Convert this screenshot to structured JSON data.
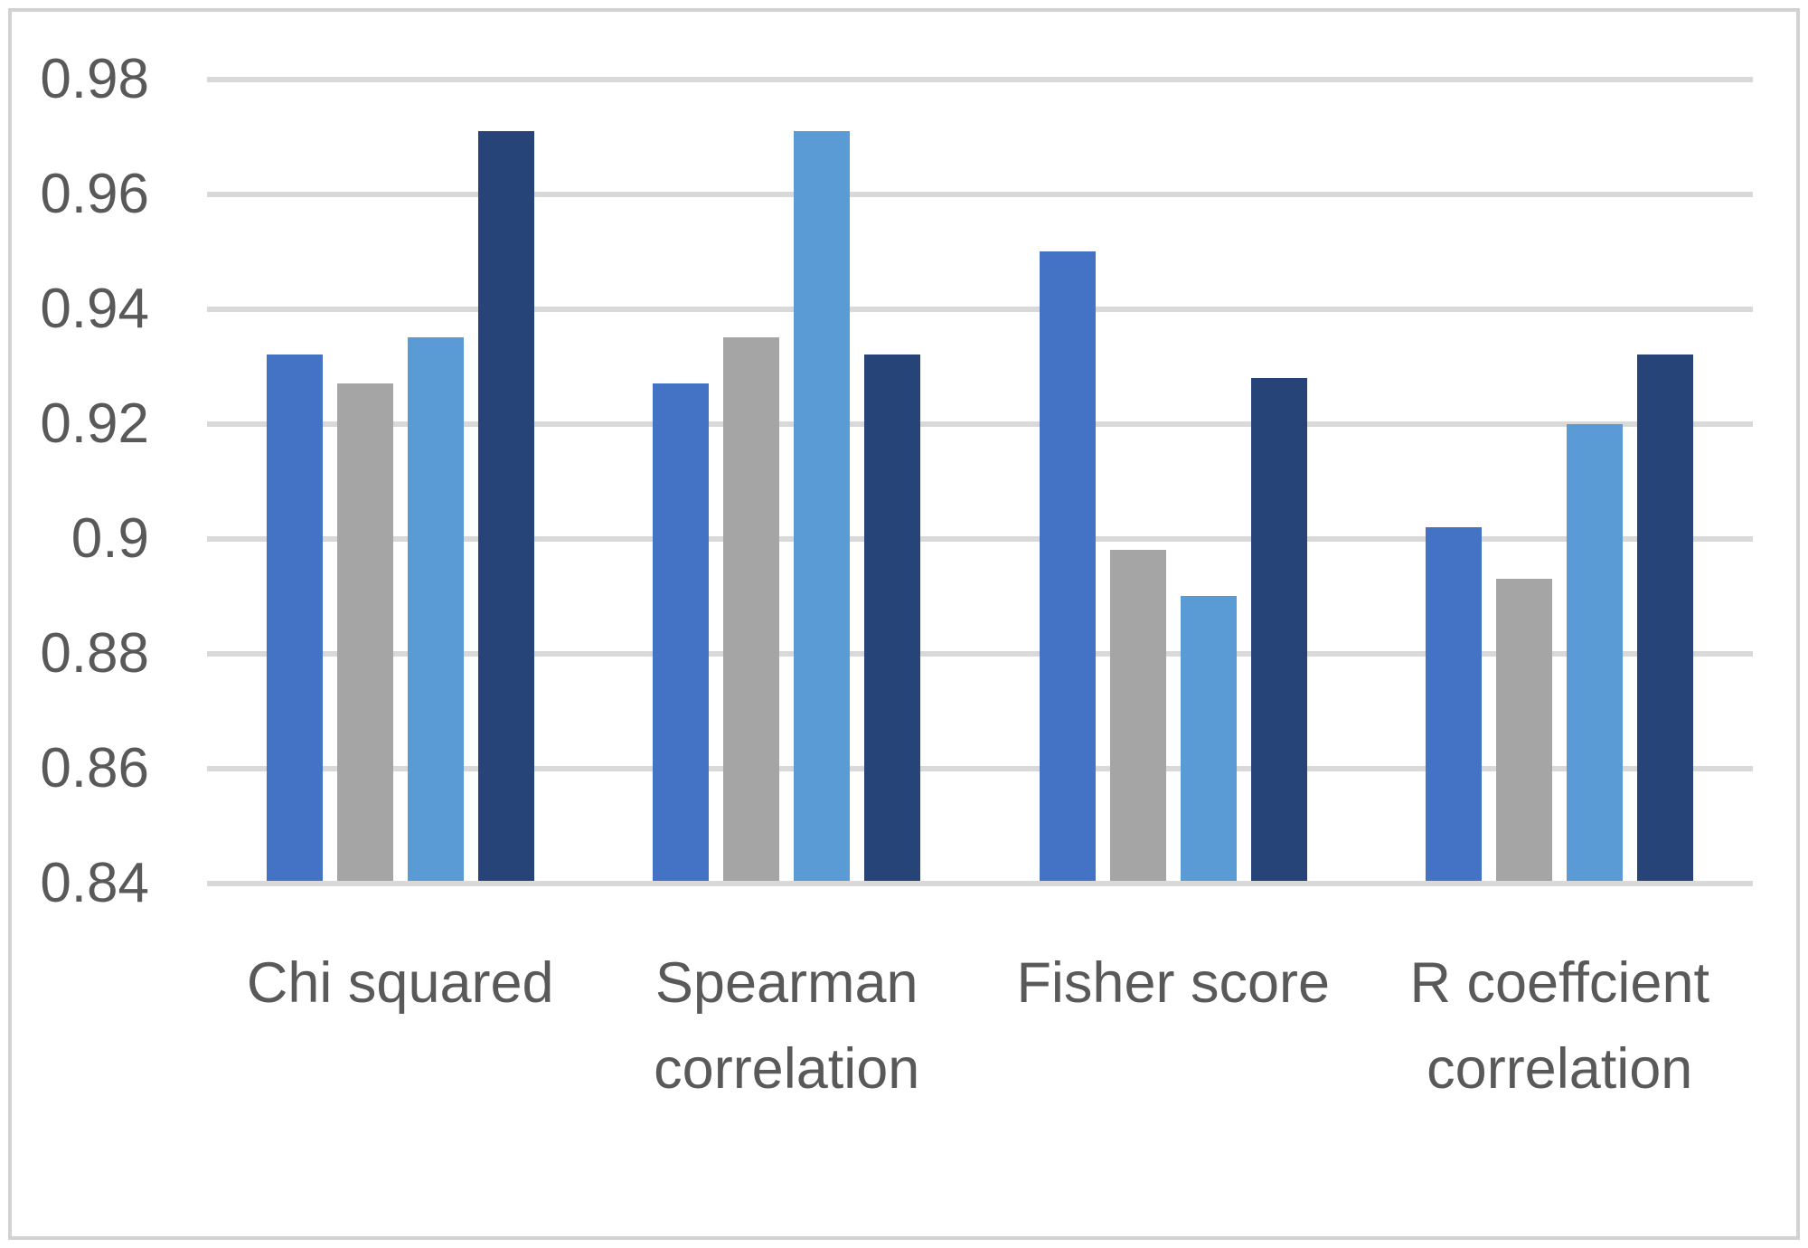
{
  "chart_data": {
    "type": "bar",
    "title": "",
    "categories": [
      "Chi squared",
      "Spearman correlation",
      "Fisher score",
      "R coeffcient correlation"
    ],
    "series": [
      {
        "color": "#4472C4",
        "values": [
          0.932,
          0.927,
          0.95,
          0.902
        ]
      },
      {
        "color": "#A5A5A5",
        "values": [
          0.927,
          0.935,
          0.898,
          0.893
        ]
      },
      {
        "color": "#5B9BD5",
        "values": [
          0.935,
          0.971,
          0.89,
          0.92
        ]
      },
      {
        "color": "#264478",
        "values": [
          0.971,
          0.932,
          0.928,
          0.932
        ]
      }
    ],
    "xlabel": "",
    "ylabel": "",
    "ylim": [
      0.84,
      0.98
    ],
    "ytick_step": 0.02,
    "ytick_labels": [
      "0.98",
      "0.96",
      "0.94",
      "0.92",
      "0.9",
      "0.88",
      "0.86",
      "0.84"
    ],
    "grid": true,
    "legend_position": "none",
    "colors": {
      "grid": "#D9D9D9",
      "axis_text": "#595959",
      "chart_border": "#D2D2D2",
      "background": "#FFFFFF"
    }
  }
}
